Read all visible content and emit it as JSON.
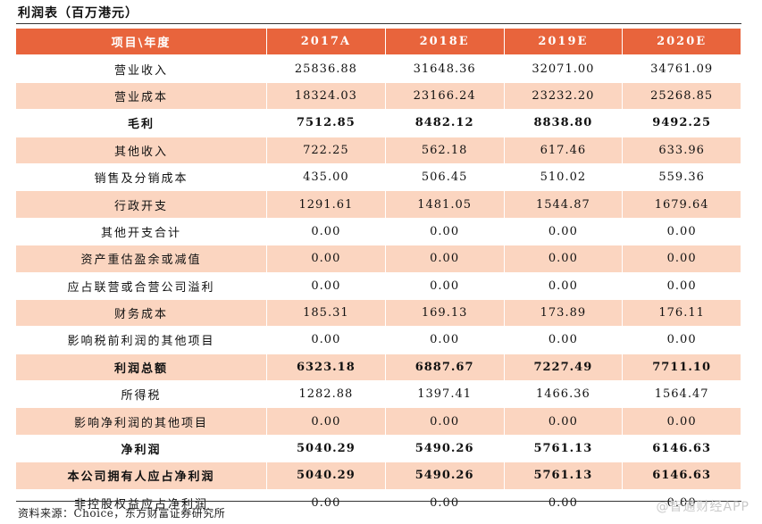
{
  "title": "利润表（百万港元）",
  "table": {
    "headers": [
      "项目\\年度",
      "2017A",
      "2018E",
      "2019E",
      "2020E"
    ],
    "rows": [
      {
        "label": "营业收入",
        "values": [
          "25836.88",
          "31648.36",
          "32071.00",
          "34761.09"
        ],
        "shaded": false,
        "bold": false
      },
      {
        "label": "营业成本",
        "values": [
          "18324.03",
          "23166.24",
          "23232.20",
          "25268.85"
        ],
        "shaded": true,
        "bold": false
      },
      {
        "label": "毛利",
        "values": [
          "7512.85",
          "8482.12",
          "8838.80",
          "9492.25"
        ],
        "shaded": false,
        "bold": true
      },
      {
        "label": "其他收入",
        "values": [
          "722.25",
          "562.18",
          "617.46",
          "633.96"
        ],
        "shaded": true,
        "bold": false
      },
      {
        "label": "销售及分销成本",
        "values": [
          "435.00",
          "506.45",
          "510.02",
          "559.36"
        ],
        "shaded": false,
        "bold": false
      },
      {
        "label": "行政开支",
        "values": [
          "1291.61",
          "1481.05",
          "1544.87",
          "1679.64"
        ],
        "shaded": true,
        "bold": false
      },
      {
        "label": "其他开支合计",
        "values": [
          "0.00",
          "0.00",
          "0.00",
          "0.00"
        ],
        "shaded": false,
        "bold": false
      },
      {
        "label": "资产重估盈余或减值",
        "values": [
          "0.00",
          "0.00",
          "0.00",
          "0.00"
        ],
        "shaded": true,
        "bold": false
      },
      {
        "label": "应占联营或合营公司溢利",
        "values": [
          "0.00",
          "0.00",
          "0.00",
          "0.00"
        ],
        "shaded": false,
        "bold": false
      },
      {
        "label": "财务成本",
        "values": [
          "185.31",
          "169.13",
          "173.89",
          "176.11"
        ],
        "shaded": true,
        "bold": false
      },
      {
        "label": "影响税前利润的其他项目",
        "values": [
          "0.00",
          "0.00",
          "0.00",
          "0.00"
        ],
        "shaded": false,
        "bold": false
      },
      {
        "label": "利润总额",
        "values": [
          "6323.18",
          "6887.67",
          "7227.49",
          "7711.10"
        ],
        "shaded": true,
        "bold": true
      },
      {
        "label": "所得税",
        "values": [
          "1282.88",
          "1397.41",
          "1466.36",
          "1564.47"
        ],
        "shaded": false,
        "bold": false
      },
      {
        "label": "影响净利润的其他项目",
        "values": [
          "0.00",
          "0.00",
          "0.00",
          "0.00"
        ],
        "shaded": true,
        "bold": false
      },
      {
        "label": "净利润",
        "values": [
          "5040.29",
          "5490.26",
          "5761.13",
          "6146.63"
        ],
        "shaded": false,
        "bold": true
      },
      {
        "label": "本公司拥有人应占净利润",
        "values": [
          "5040.29",
          "5490.26",
          "5761.13",
          "6146.63"
        ],
        "shaded": true,
        "bold": true
      },
      {
        "label": "非控股权益应占净利润",
        "values": [
          "0.00",
          "0.00",
          "0.00",
          "0.00"
        ],
        "shaded": false,
        "bold": false
      }
    ]
  },
  "source": "资料来源：Choice，东方财富证券研究所",
  "watermark": "@智通财经APP"
}
